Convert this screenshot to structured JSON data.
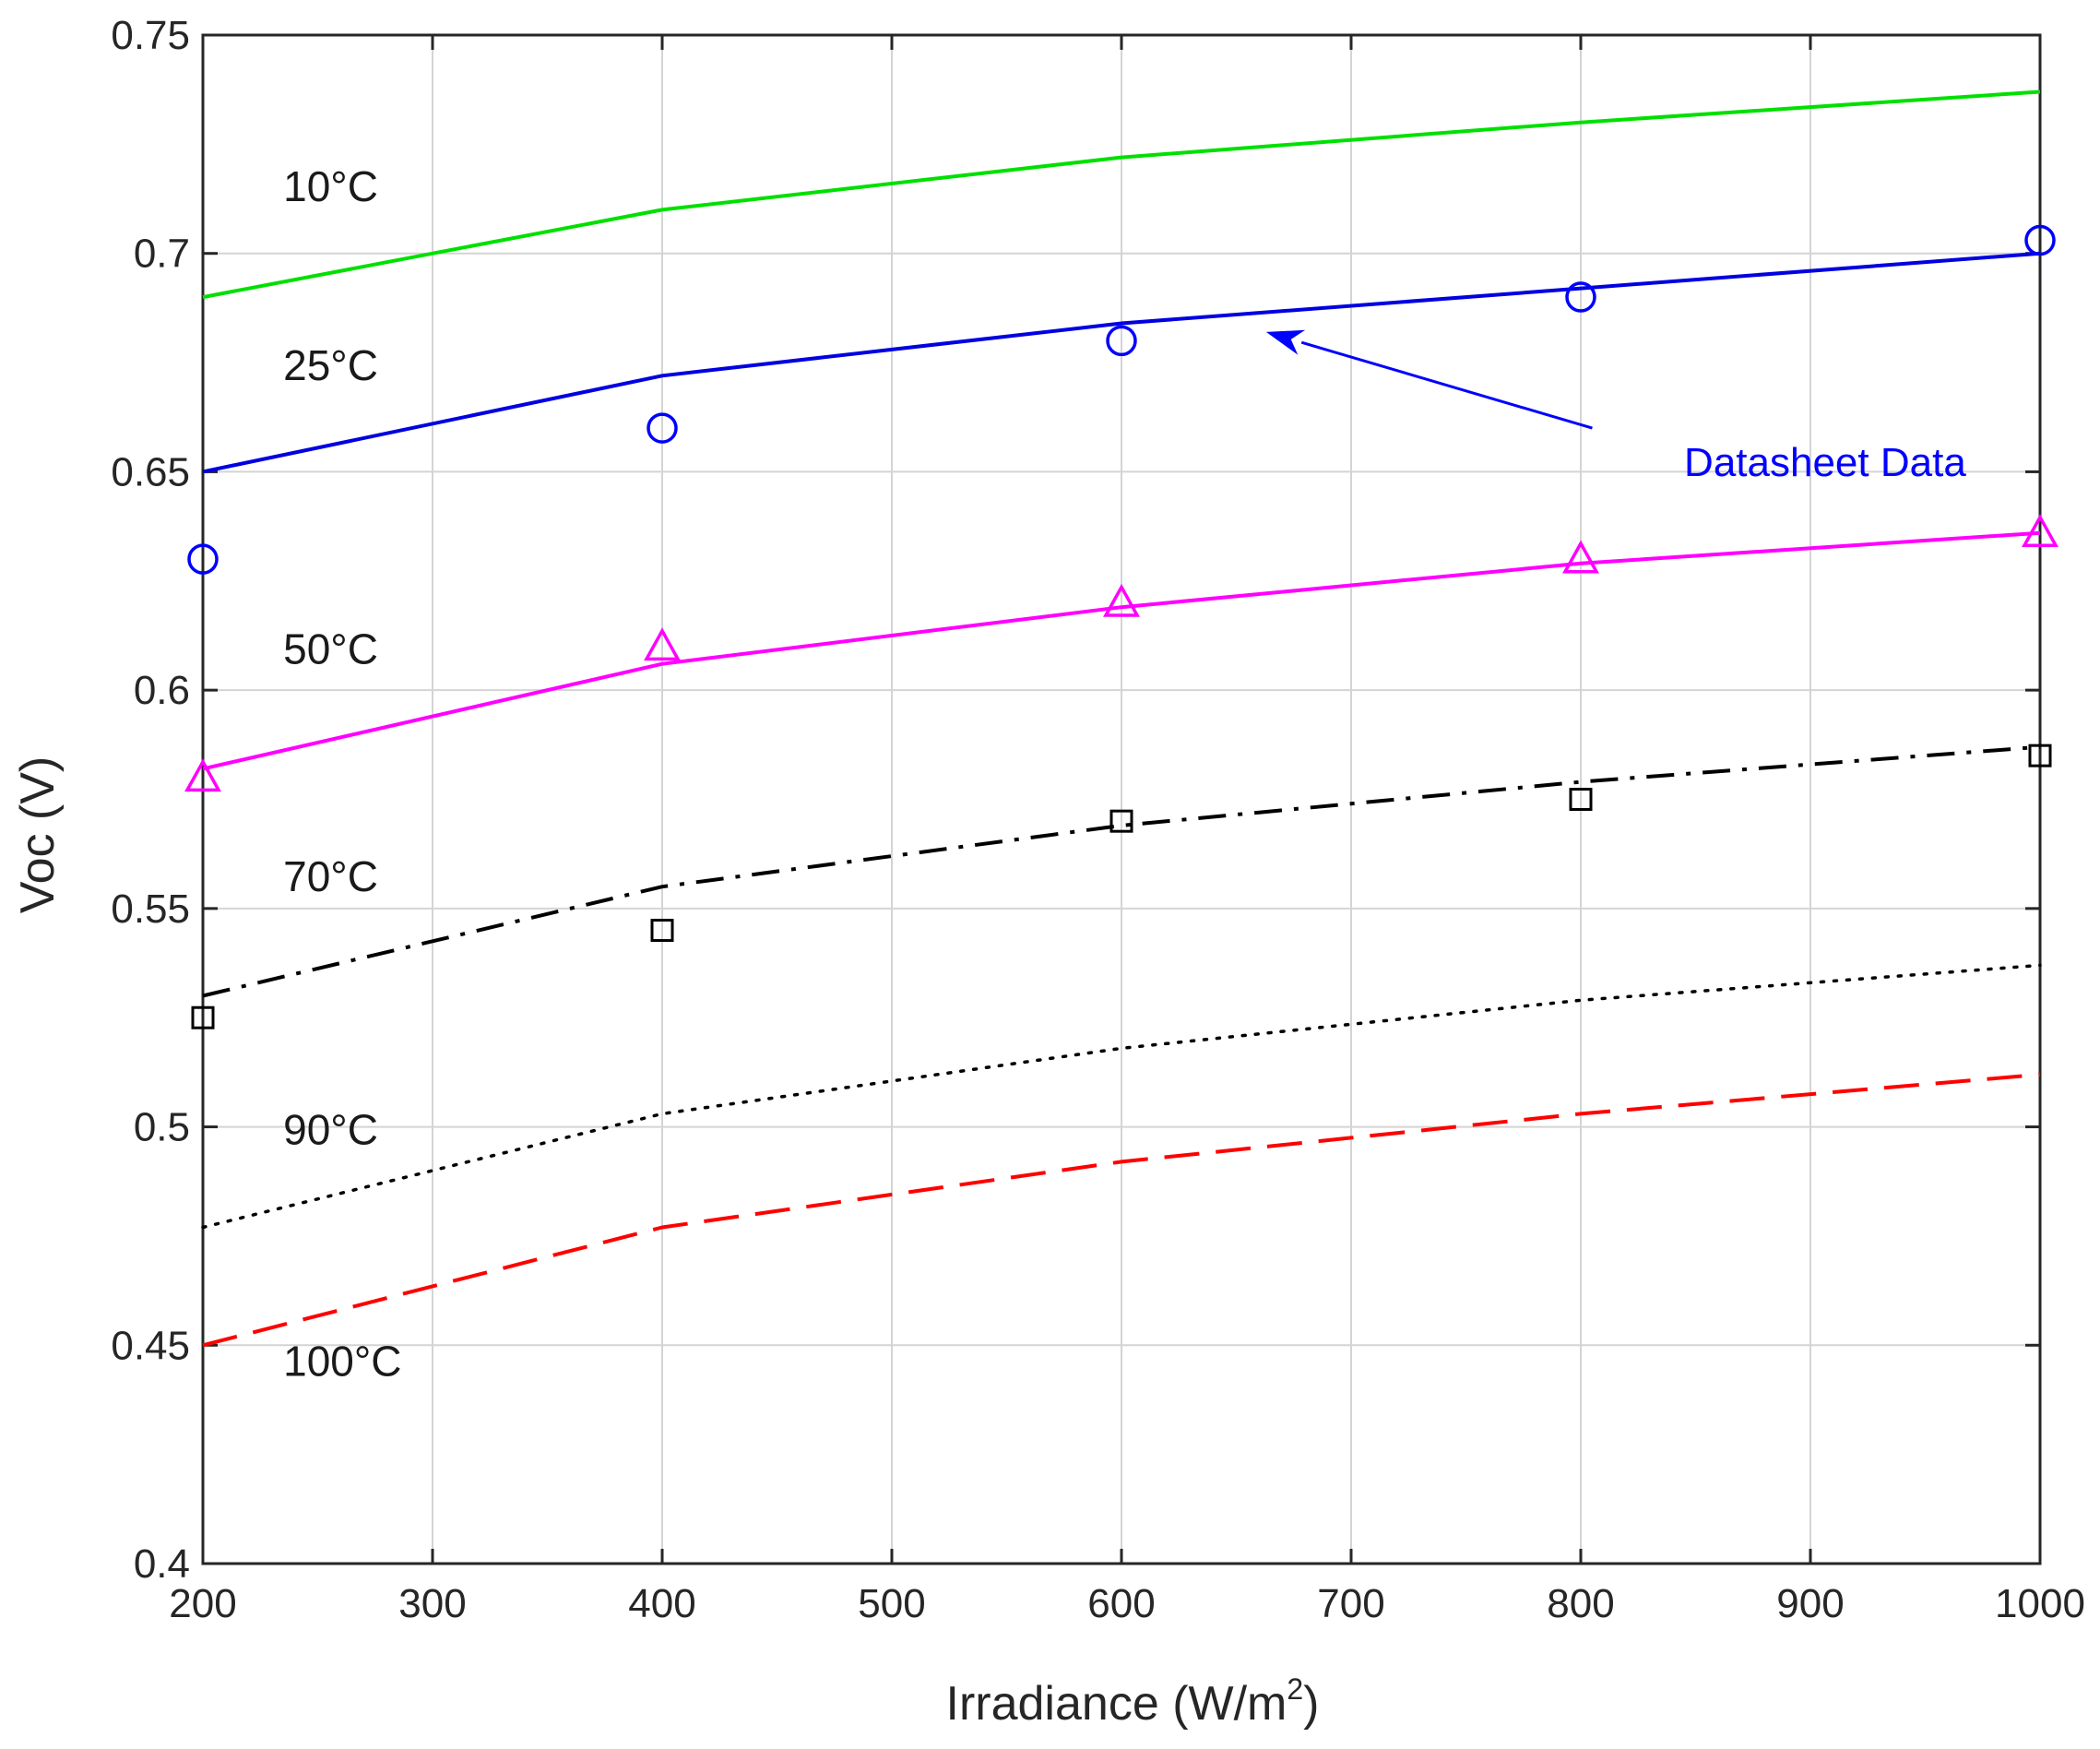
{
  "chart_data": {
    "type": "line",
    "title": "",
    "xlabel": "Irradiance (W/m",
    "xlabel_superscript": "2",
    "xlabel_suffix": ")",
    "ylabel": "Voc (V)",
    "xlim": [
      200,
      1000
    ],
    "ylim": [
      0.4,
      0.75
    ],
    "xticks": [
      200,
      300,
      400,
      500,
      600,
      700,
      800,
      900,
      1000
    ],
    "xtick_labels": [
      "200",
      "300",
      "400",
      "500",
      "600",
      "700",
      "800",
      "900",
      "1000"
    ],
    "yticks": [
      0.4,
      0.45,
      0.5,
      0.55,
      0.6,
      0.65,
      0.7,
      0.75
    ],
    "ytick_labels": [
      "0.4",
      "0.45",
      "0.5",
      "0.55",
      "0.6",
      "0.65",
      "0.7",
      "0.75"
    ],
    "grid": true,
    "series": [
      {
        "name": "10°C",
        "label": "10°C",
        "color": "#00e000",
        "line_style": "solid",
        "x": [
          200,
          400,
          600,
          800,
          1000
        ],
        "values": [
          0.69,
          0.71,
          0.722,
          0.73,
          0.737
        ],
        "label_pos": [
          235,
          0.712
        ]
      },
      {
        "name": "25°C",
        "label": "25°C",
        "color": "#0000e0",
        "line_style": "solid",
        "x": [
          200,
          400,
          600,
          800,
          1000
        ],
        "values": [
          0.65,
          0.672,
          0.684,
          0.692,
          0.7
        ],
        "label_pos": [
          235,
          0.671
        ]
      },
      {
        "name": "50°C",
        "label": "50°C",
        "color": "#ff00ff",
        "line_style": "solid",
        "x": [
          200,
          400,
          600,
          800,
          1000
        ],
        "values": [
          0.582,
          0.606,
          0.619,
          0.629,
          0.636
        ],
        "label_pos": [
          235,
          0.606
        ]
      },
      {
        "name": "70°C",
        "label": "70°C",
        "color": "#000000",
        "line_style": "dashdot",
        "x": [
          200,
          400,
          600,
          800,
          1000
        ],
        "values": [
          0.53,
          0.555,
          0.569,
          0.579,
          0.587
        ],
        "label_pos": [
          235,
          0.554
        ]
      },
      {
        "name": "90°C",
        "label": "90°C",
        "color": "#000000",
        "line_style": "dotted",
        "x": [
          200,
          400,
          600,
          800,
          1000
        ],
        "values": [
          0.477,
          0.503,
          0.518,
          0.529,
          0.537
        ],
        "label_pos": [
          235,
          0.496
        ]
      },
      {
        "name": "100°C",
        "label": "100°C",
        "color": "#ff0000",
        "line_style": "dashed",
        "x": [
          200,
          400,
          600,
          800,
          1000
        ],
        "values": [
          0.45,
          0.477,
          0.492,
          0.503,
          0.512
        ],
        "label_pos": [
          235,
          0.443
        ]
      }
    ],
    "markers": [
      {
        "name": "datasheet-25C",
        "shape": "circle",
        "color": "#0000ff",
        "x": [
          200,
          400,
          600,
          800,
          1000
        ],
        "values": [
          0.63,
          0.66,
          0.68,
          0.69,
          0.703
        ]
      },
      {
        "name": "datasheet-50C",
        "shape": "triangle",
        "color": "#ff00ff",
        "x": [
          200,
          400,
          600,
          800,
          1000
        ],
        "values": [
          0.58,
          0.61,
          0.62,
          0.63,
          0.636
        ]
      },
      {
        "name": "datasheet-70C",
        "shape": "square",
        "color": "#000000",
        "x": [
          200,
          400,
          600,
          800,
          1000
        ],
        "values": [
          0.525,
          0.545,
          0.57,
          0.575,
          0.585
        ]
      }
    ],
    "annotations": [
      {
        "text": "Datasheet Data",
        "color": "#0000ff",
        "text_pos": [
          845,
          0.649
        ],
        "arrow_from": [
          805,
          0.66
        ],
        "arrow_to": [
          663,
          0.682
        ]
      }
    ]
  }
}
